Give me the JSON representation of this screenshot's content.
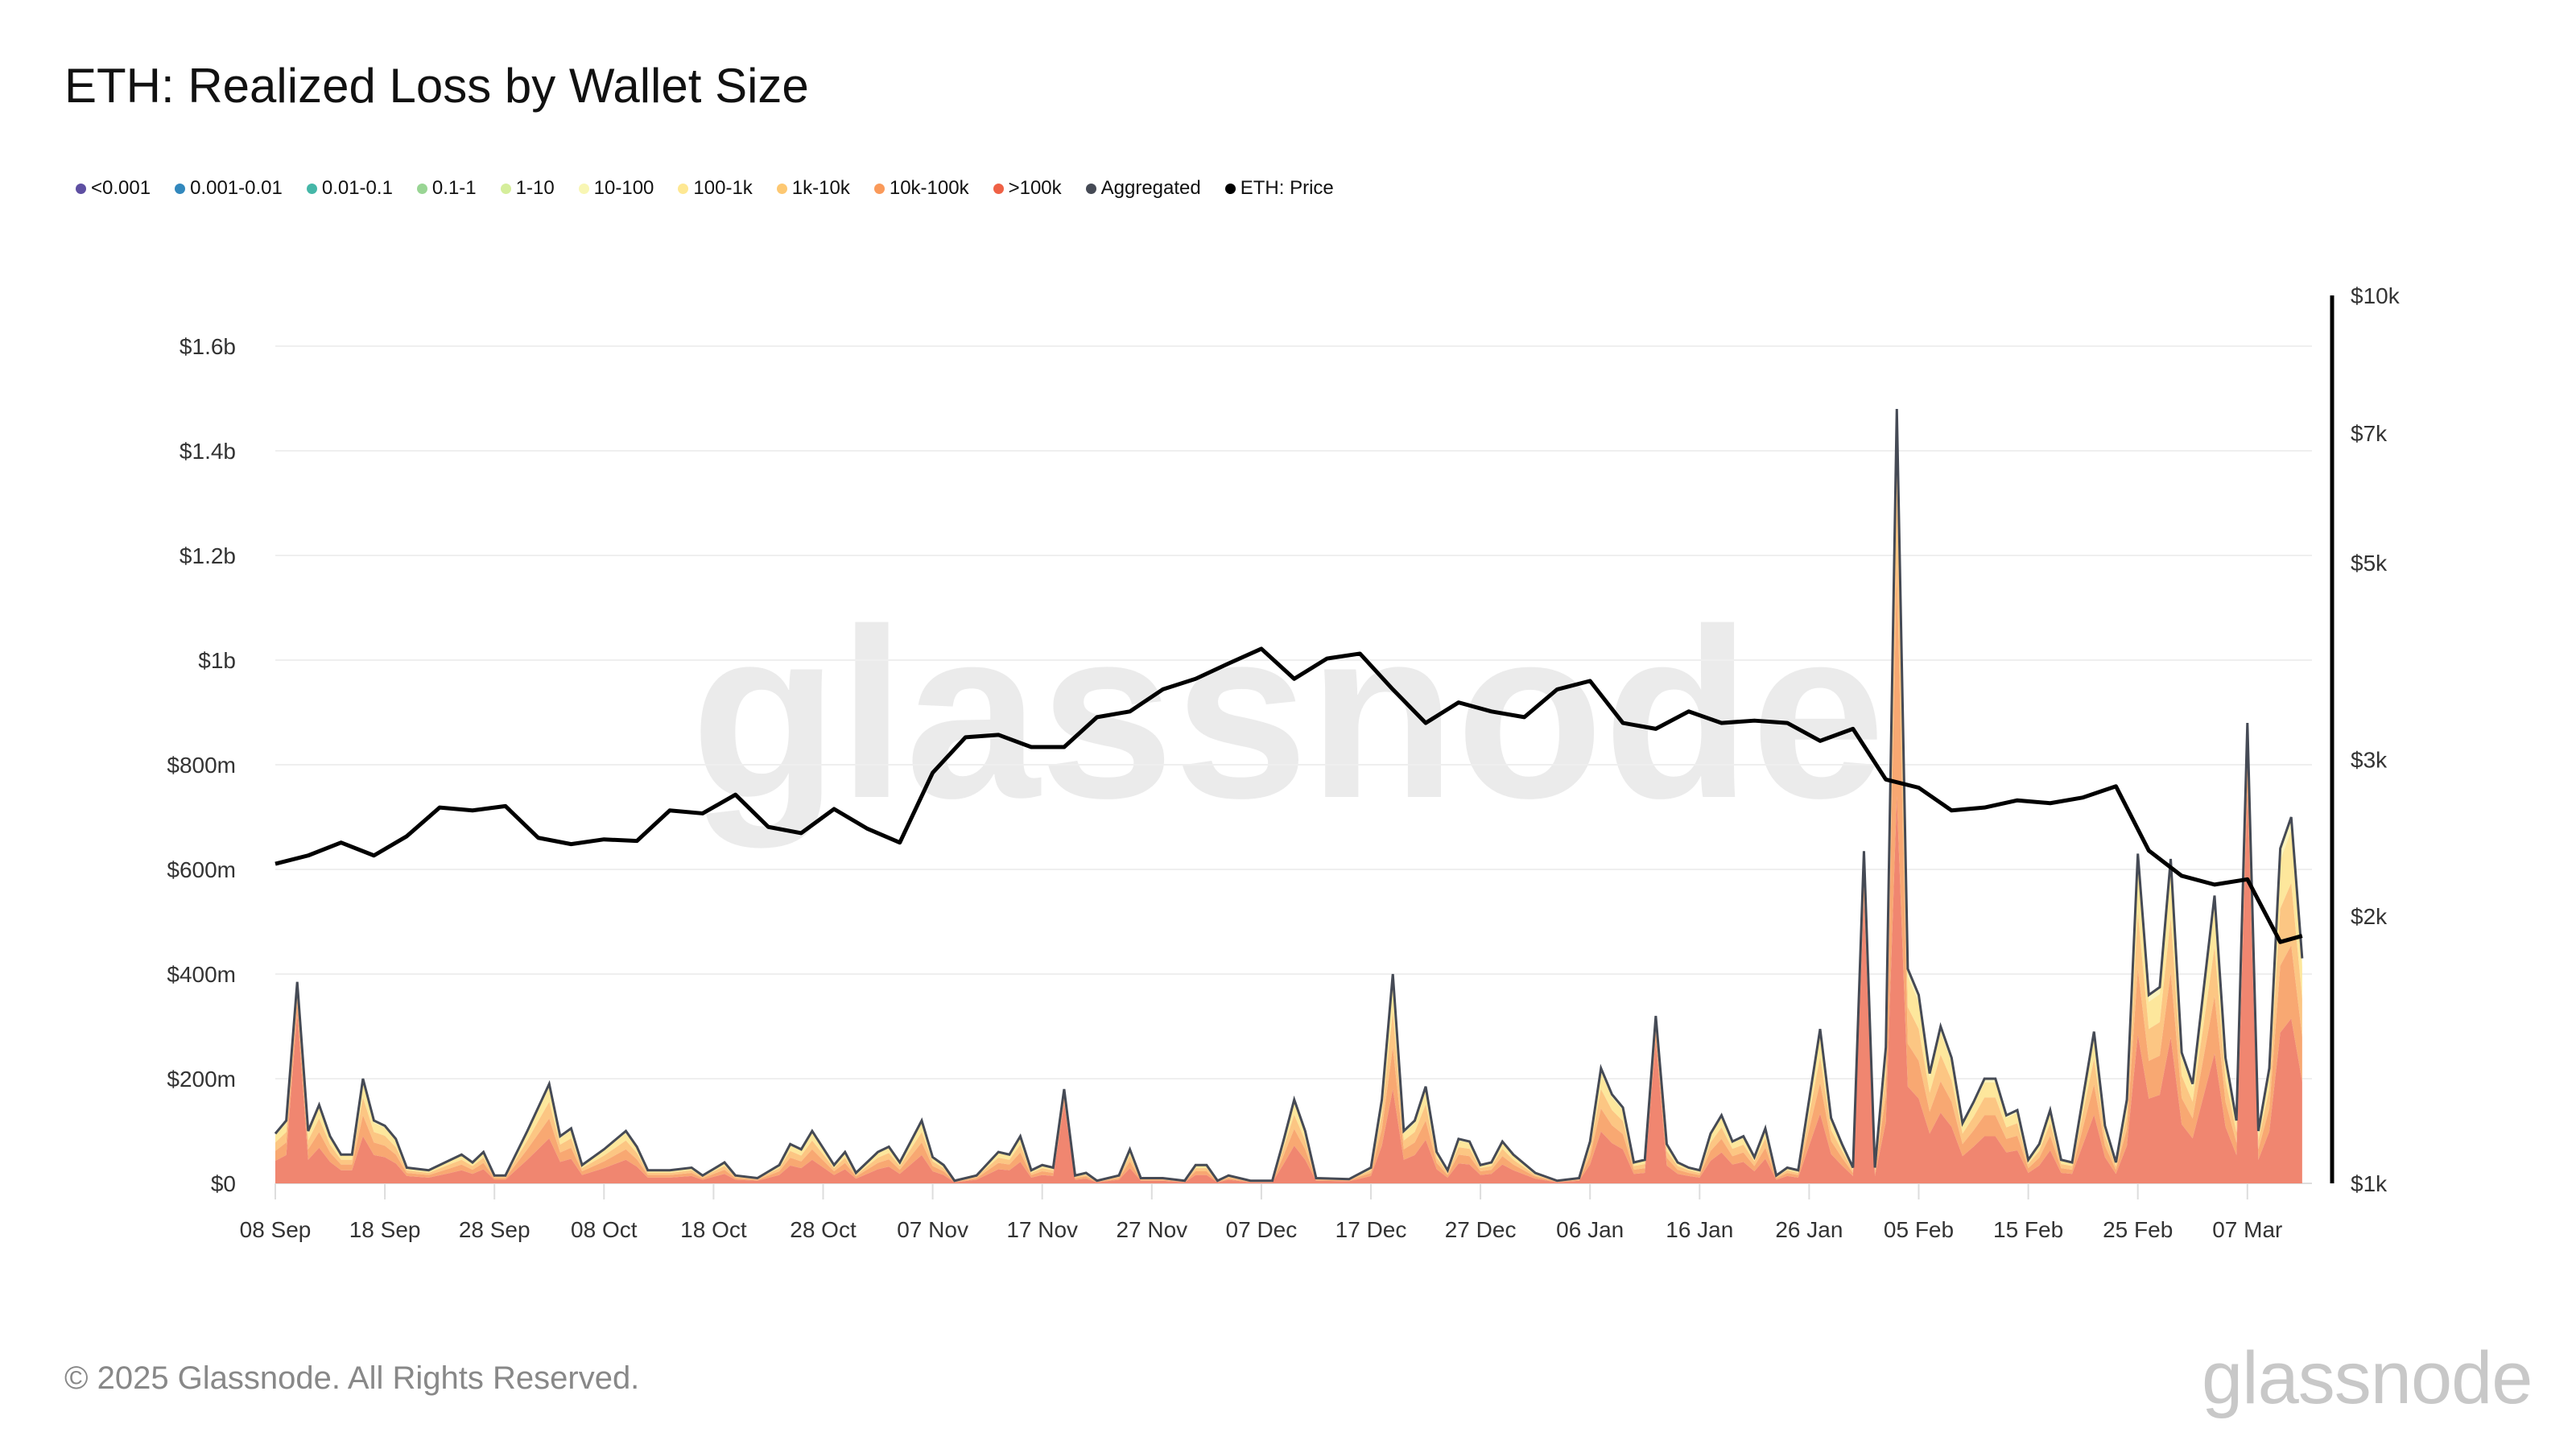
{
  "title": "ETH: Realized Loss by Wallet Size",
  "legend": [
    {
      "label": "<0.001",
      "color": "#5e4fa2"
    },
    {
      "label": "0.001-0.01",
      "color": "#3288bd"
    },
    {
      "label": "0.01-0.1",
      "color": "#45b7a8"
    },
    {
      "label": "0.1-1",
      "color": "#99d594"
    },
    {
      "label": "1-10",
      "color": "#d5ee9b"
    },
    {
      "label": "10-100",
      "color": "#f8f6b4"
    },
    {
      "label": "100-1k",
      "color": "#fee893"
    },
    {
      "label": "1k-10k",
      "color": "#fdc872"
    },
    {
      "label": "10k-100k",
      "color": "#fa9a5a"
    },
    {
      "label": ">100k",
      "color": "#ef6145"
    },
    {
      "label": "Aggregated",
      "color": "#454a55"
    },
    {
      "label": "ETH: Price",
      "color": "#000000"
    }
  ],
  "footer": "© 2025 Glassnode. All Rights Reserved.",
  "logo_text": "glassnode",
  "watermark": "glassnode",
  "chart_data": {
    "type": "area",
    "stacked": true,
    "title": "ETH: Realized Loss by Wallet Size",
    "grid": true,
    "legend_position": "top-left",
    "y_left": {
      "range": [
        0,
        1700000000
      ],
      "ticks": [
        0,
        200000000,
        400000000,
        600000000,
        800000000,
        1000000000,
        1200000000,
        1400000000,
        1600000000
      ],
      "tick_labels": [
        "$0",
        "$200m",
        "$400m",
        "$600m",
        "$800m",
        "$1b",
        "$1.2b",
        "$1.4b",
        "$1.6b"
      ]
    },
    "y_right": {
      "scale": "log",
      "range": [
        1000,
        10000
      ],
      "ticks": [
        1000,
        2000,
        3000,
        5000,
        7000,
        10000
      ],
      "tick_labels": [
        "$1k",
        "$2k",
        "$3k",
        "$5k",
        "$7k",
        "$10k"
      ]
    },
    "x_ticks": [
      {
        "date": "2024-09-08",
        "label": "08 Sep"
      },
      {
        "date": "2024-09-18",
        "label": "18 Sep"
      },
      {
        "date": "2024-09-28",
        "label": "28 Sep"
      },
      {
        "date": "2024-10-08",
        "label": "08 Oct"
      },
      {
        "date": "2024-10-18",
        "label": "18 Oct"
      },
      {
        "date": "2024-10-28",
        "label": "28 Oct"
      },
      {
        "date": "2024-11-07",
        "label": "07 Nov"
      },
      {
        "date": "2024-11-17",
        "label": "17 Nov"
      },
      {
        "date": "2024-11-27",
        "label": "27 Nov"
      },
      {
        "date": "2024-12-07",
        "label": "07 Dec"
      },
      {
        "date": "2024-12-17",
        "label": "17 Dec"
      },
      {
        "date": "2024-12-27",
        "label": "27 Dec"
      },
      {
        "date": "2025-01-06",
        "label": "06 Jan"
      },
      {
        "date": "2025-01-16",
        "label": "16 Jan"
      },
      {
        "date": "2025-01-26",
        "label": "26 Jan"
      },
      {
        "date": "2025-02-05",
        "label": "05 Feb"
      },
      {
        "date": "2025-02-15",
        "label": "15 Feb"
      },
      {
        "date": "2025-02-25",
        "label": "25 Feb"
      },
      {
        "date": "2025-03-07",
        "label": "07 Mar"
      }
    ],
    "unit": "USD millions",
    "dates": [
      "2024-09-08",
      "2024-09-09",
      "2024-09-10",
      "2024-09-11",
      "2024-09-12",
      "2024-09-13",
      "2024-09-14",
      "2024-09-15",
      "2024-09-16",
      "2024-09-17",
      "2024-09-18",
      "2024-09-19",
      "2024-09-20",
      "2024-09-22",
      "2024-09-24",
      "2024-09-25",
      "2024-09-26",
      "2024-09-27",
      "2024-09-28",
      "2024-09-29",
      "2024-10-01",
      "2024-10-03",
      "2024-10-04",
      "2024-10-05",
      "2024-10-06",
      "2024-10-08",
      "2024-10-10",
      "2024-10-11",
      "2024-10-12",
      "2024-10-14",
      "2024-10-16",
      "2024-10-17",
      "2024-10-19",
      "2024-10-20",
      "2024-10-22",
      "2024-10-24",
      "2024-10-25",
      "2024-10-26",
      "2024-10-27",
      "2024-10-29",
      "2024-10-30",
      "2024-10-31",
      "2024-11-02",
      "2024-11-03",
      "2024-11-04",
      "2024-11-06",
      "2024-11-07",
      "2024-11-08",
      "2024-11-09",
      "2024-11-11",
      "2024-11-13",
      "2024-11-14",
      "2024-11-15",
      "2024-11-16",
      "2024-11-17",
      "2024-11-18",
      "2024-11-19",
      "2024-11-20",
      "2024-11-21",
      "2024-11-22",
      "2024-11-24",
      "2024-11-25",
      "2024-11-26",
      "2024-11-28",
      "2024-11-30",
      "2024-12-01",
      "2024-12-02",
      "2024-12-03",
      "2024-12-04",
      "2024-12-06",
      "2024-12-08",
      "2024-12-09",
      "2024-12-10",
      "2024-12-11",
      "2024-12-12",
      "2024-12-15",
      "2024-12-17",
      "2024-12-18",
      "2024-12-19",
      "2024-12-20",
      "2024-12-21",
      "2024-12-22",
      "2024-12-23",
      "2024-12-24",
      "2024-12-25",
      "2024-12-26",
      "2024-12-27",
      "2024-12-28",
      "2024-12-29",
      "2024-12-30",
      "2025-01-01",
      "2025-01-03",
      "2025-01-05",
      "2025-01-06",
      "2025-01-07",
      "2025-01-08",
      "2025-01-09",
      "2025-01-10",
      "2025-01-11",
      "2025-01-12",
      "2025-01-13",
      "2025-01-14",
      "2025-01-15",
      "2025-01-16",
      "2025-01-17",
      "2025-01-18",
      "2025-01-19",
      "2025-01-20",
      "2025-01-21",
      "2025-01-22",
      "2025-01-23",
      "2025-01-24",
      "2025-01-25",
      "2025-01-27",
      "2025-01-28",
      "2025-01-29",
      "2025-01-30",
      "2025-01-31",
      "2025-02-01",
      "2025-02-02",
      "2025-02-03",
      "2025-02-04",
      "2025-02-05",
      "2025-02-06",
      "2025-02-07",
      "2025-02-08",
      "2025-02-09",
      "2025-02-10",
      "2025-02-11",
      "2025-02-12",
      "2025-02-13",
      "2025-02-14",
      "2025-02-15",
      "2025-02-16",
      "2025-02-17",
      "2025-02-18",
      "2025-02-19",
      "2025-02-21",
      "2025-02-22",
      "2025-02-23",
      "2025-02-24",
      "2025-02-25",
      "2025-02-26",
      "2025-02-27",
      "2025-02-28",
      "2025-03-01",
      "2025-03-02",
      "2025-03-04",
      "2025-03-05",
      "2025-03-06",
      "2025-03-07",
      "2025-03-08",
      "2025-03-09",
      "2025-03-10",
      "2025-03-11",
      "2025-03-12"
    ],
    "series": [
      {
        "name": ">100k",
        "color": "#ef6145",
        "values": [
          43,
          54,
          327,
          45,
          68,
          41,
          25,
          25,
          90,
          54,
          50,
          38,
          14,
          11,
          20,
          25,
          18,
          27,
          7,
          7,
          45,
          86,
          41,
          47,
          16,
          29,
          45,
          32,
          11,
          11,
          14,
          7,
          18,
          7,
          5,
          16,
          34,
          29,
          45,
          16,
          27,
          9,
          27,
          32,
          18,
          54,
          23,
          16,
          2,
          7,
          27,
          25,
          41,
          11,
          16,
          14,
          153,
          7,
          9,
          2,
          7,
          29,
          5,
          5,
          2,
          16,
          16,
          2,
          7,
          2,
          2,
          36,
          72,
          45,
          5,
          4,
          14,
          72,
          180,
          45,
          54,
          83,
          27,
          11,
          38,
          36,
          16,
          18,
          36,
          25,
          9,
          2,
          5,
          36,
          99,
          77,
          65,
          18,
          20,
          272,
          34,
          18,
          14,
          11,
          43,
          59,
          36,
          41,
          23,
          47,
          7,
          14,
          11,
          133,
          56,
          34,
          14,
          540,
          14,
          117,
          740,
          185,
          162,
          95,
          135,
          108,
          52,
          70,
          90,
          90,
          59,
          63,
          20,
          34,
          63,
          20,
          18,
          131,
          50,
          18,
          72,
          284,
          162,
          169,
          279,
          113,
          86,
          248,
          108,
          54,
          748,
          45,
          99,
          288,
          315,
          194
        ]
      },
      {
        "name": "10k-100k",
        "color": "#fa9a5a",
        "values": [
          19,
          24,
          23,
          20,
          30,
          18,
          11,
          11,
          40,
          24,
          22,
          17,
          6,
          5,
          9,
          11,
          8,
          12,
          3,
          3,
          20,
          38,
          18,
          21,
          7,
          13,
          20,
          14,
          5,
          5,
          6,
          3,
          8,
          3,
          2,
          7,
          15,
          13,
          20,
          7,
          12,
          4,
          12,
          14,
          8,
          24,
          10,
          7,
          1,
          3,
          12,
          11,
          18,
          5,
          7,
          6,
          11,
          3,
          4,
          1,
          3,
          13,
          2,
          2,
          1,
          7,
          7,
          1,
          3,
          1,
          1,
          16,
          32,
          20,
          2,
          2,
          6,
          32,
          80,
          20,
          24,
          37,
          12,
          5,
          17,
          16,
          7,
          8,
          16,
          11,
          4,
          1,
          2,
          16,
          44,
          34,
          29,
          8,
          9,
          19,
          15,
          8,
          6,
          5,
          19,
          26,
          16,
          18,
          10,
          21,
          3,
          6,
          5,
          59,
          25,
          15,
          6,
          38,
          6,
          52,
          444,
          82,
          72,
          42,
          60,
          48,
          23,
          31,
          40,
          40,
          26,
          28,
          9,
          15,
          28,
          9,
          8,
          58,
          22,
          8,
          32,
          126,
          72,
          75,
          124,
          50,
          38,
          110,
          48,
          24,
          53,
          20,
          44,
          128,
          140,
          86
        ]
      },
      {
        "name": "1k-10k",
        "color": "#fdc872",
        "values": [
          16,
          20,
          19,
          17,
          26,
          15,
          9,
          9,
          34,
          20,
          19,
          14,
          5,
          4,
          8,
          9,
          7,
          10,
          3,
          3,
          17,
          32,
          15,
          18,
          6,
          11,
          17,
          12,
          4,
          4,
          5,
          3,
          7,
          3,
          2,
          6,
          13,
          11,
          17,
          6,
          10,
          3,
          10,
          12,
          7,
          20,
          9,
          6,
          1,
          3,
          10,
          9,
          15,
          4,
          6,
          5,
          9,
          3,
          3,
          1,
          3,
          11,
          2,
          2,
          1,
          6,
          6,
          1,
          3,
          1,
          1,
          14,
          27,
          17,
          2,
          1,
          5,
          27,
          68,
          17,
          20,
          31,
          10,
          4,
          14,
          14,
          6,
          7,
          14,
          9,
          3,
          1,
          2,
          14,
          37,
          29,
          25,
          7,
          8,
          16,
          13,
          7,
          5,
          4,
          16,
          22,
          14,
          15,
          9,
          18,
          3,
          5,
          4,
          50,
          21,
          13,
          5,
          32,
          5,
          44,
          178,
          70,
          61,
          36,
          51,
          41,
          20,
          26,
          34,
          34,
          22,
          24,
          8,
          13,
          24,
          8,
          7,
          49,
          19,
          7,
          27,
          107,
          61,
          64,
          105,
          43,
          32,
          94,
          41,
          20,
          44,
          17,
          37,
          109,
          119,
          73
        ]
      },
      {
        "name": "Aggregated",
        "color": "#454a55",
        "values": [
          95,
          120,
          385,
          100,
          150,
          90,
          55,
          55,
          200,
          120,
          110,
          85,
          30,
          25,
          45,
          55,
          40,
          60,
          15,
          15,
          100,
          190,
          90,
          105,
          35,
          65,
          100,
          70,
          25,
          25,
          30,
          15,
          40,
          15,
          10,
          35,
          75,
          65,
          100,
          35,
          60,
          20,
          60,
          70,
          40,
          120,
          50,
          35,
          5,
          15,
          60,
          55,
          90,
          25,
          35,
          30,
          180,
          15,
          20,
          5,
          15,
          65,
          10,
          10,
          5,
          35,
          35,
          5,
          15,
          5,
          5,
          80,
          160,
          100,
          10,
          8,
          30,
          160,
          400,
          100,
          120,
          185,
          60,
          25,
          85,
          80,
          35,
          40,
          80,
          55,
          20,
          5,
          10,
          80,
          220,
          170,
          145,
          40,
          45,
          320,
          75,
          40,
          30,
          25,
          95,
          130,
          80,
          90,
          50,
          105,
          15,
          30,
          25,
          295,
          125,
          75,
          30,
          635,
          30,
          260,
          1480,
          410,
          360,
          210,
          300,
          240,
          115,
          155,
          200,
          200,
          130,
          140,
          45,
          75,
          140,
          45,
          40,
          290,
          110,
          40,
          160,
          630,
          360,
          375,
          620,
          250,
          190,
          550,
          240,
          120,
          880,
          100,
          220,
          640,
          700,
          430
        ]
      }
    ],
    "price": {
      "name": "ETH: Price",
      "color": "#000000",
      "dates": [
        "2024-09-08",
        "2024-09-11",
        "2024-09-14",
        "2024-09-17",
        "2024-09-20",
        "2024-09-23",
        "2024-09-26",
        "2024-09-29",
        "2024-10-02",
        "2024-10-05",
        "2024-10-08",
        "2024-10-11",
        "2024-10-14",
        "2024-10-17",
        "2024-10-20",
        "2024-10-23",
        "2024-10-26",
        "2024-10-29",
        "2024-11-01",
        "2024-11-04",
        "2024-11-07",
        "2024-11-10",
        "2024-11-13",
        "2024-11-16",
        "2024-11-19",
        "2024-11-22",
        "2024-11-25",
        "2024-11-28",
        "2024-12-01",
        "2024-12-04",
        "2024-12-07",
        "2024-12-10",
        "2024-12-13",
        "2024-12-16",
        "2024-12-19",
        "2024-12-22",
        "2024-12-25",
        "2024-12-28",
        "2024-12-31",
        "2025-01-03",
        "2025-01-06",
        "2025-01-09",
        "2025-01-12",
        "2025-01-15",
        "2025-01-18",
        "2025-01-21",
        "2025-01-24",
        "2025-01-27",
        "2025-01-30",
        "2025-02-02",
        "2025-02-05",
        "2025-02-08",
        "2025-02-11",
        "2025-02-14",
        "2025-02-17",
        "2025-02-20",
        "2025-02-23",
        "2025-02-26",
        "2025-03-01",
        "2025-03-04",
        "2025-03-07",
        "2025-03-10",
        "2025-03-12"
      ],
      "values": [
        2290,
        2340,
        2420,
        2340,
        2460,
        2650,
        2630,
        2660,
        2450,
        2410,
        2440,
        2430,
        2630,
        2610,
        2740,
        2520,
        2480,
        2640,
        2510,
        2420,
        2900,
        3180,
        3200,
        3100,
        3100,
        3350,
        3400,
        3600,
        3700,
        3850,
        4000,
        3700,
        3900,
        3950,
        3600,
        3300,
        3480,
        3400,
        3350,
        3600,
        3680,
        3300,
        3250,
        3400,
        3300,
        3320,
        3300,
        3150,
        3250,
        2850,
        2790,
        2630,
        2650,
        2700,
        2680,
        2720,
        2800,
        2370,
        2220,
        2170,
        2200,
        1870,
        1900
      ]
    }
  }
}
